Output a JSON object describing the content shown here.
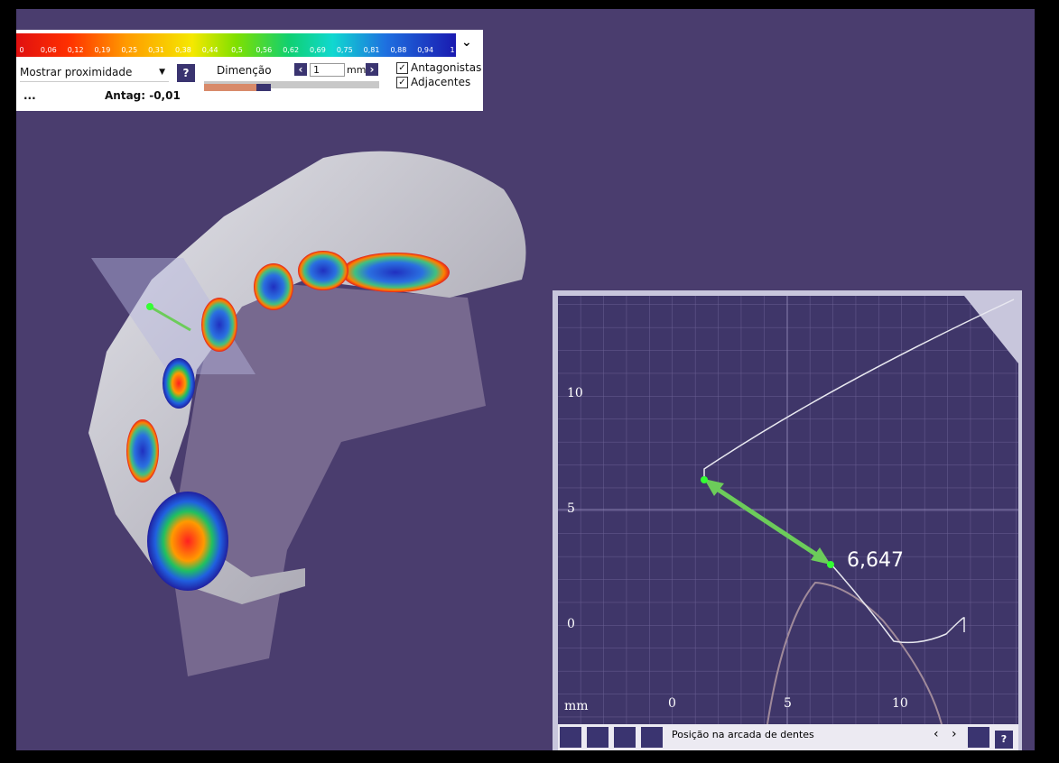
{
  "color_scale": {
    "labels": [
      "0",
      "0,06",
      "0,12",
      "0,19",
      "0,25",
      "0,31",
      "0,38",
      "0,44",
      "0,5",
      "0,56",
      "0,62",
      "0,69",
      "0,75",
      "0,81",
      "0,88",
      "0,94",
      "1"
    ]
  },
  "controls": {
    "mode_dropdown": "Mostrar proximidade",
    "help": "?",
    "dimension_label": "Dimenção",
    "dimension_value": "1",
    "unit": "mm",
    "checkboxes": [
      "Antagonistas",
      "Adjacentes"
    ],
    "status_left": "...",
    "status_right": "Antag: -0,01"
  },
  "section_view": {
    "y_ticks": [
      "10",
      "5",
      "0"
    ],
    "x_ticks": [
      "0",
      "5",
      "10"
    ],
    "unit": "mm",
    "measurement": "6,647"
  },
  "toolbar": {
    "label": "Posição na arcada de dentes",
    "help": "?"
  }
}
